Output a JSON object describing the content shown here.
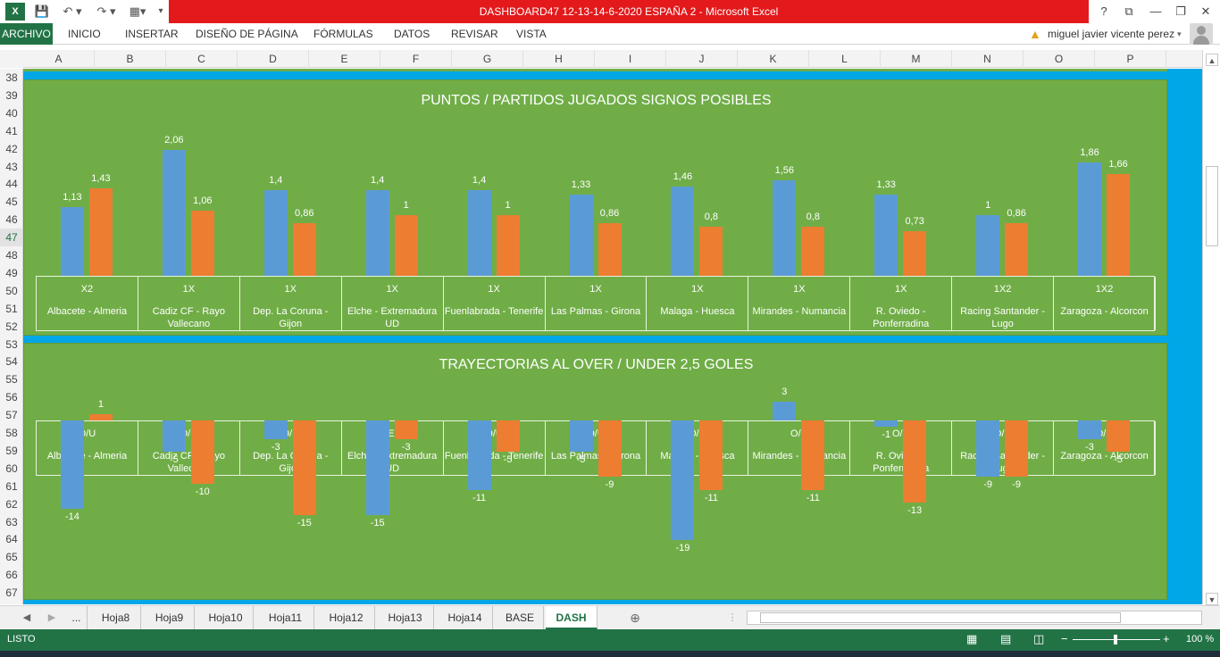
{
  "window": {
    "title": "DASHBOARD47 12-13-14-6-2020 ESPAÑA 2 -  Microsoft Excel",
    "help": "?",
    "controls": [
      "⧉",
      "—",
      "❐",
      "✕"
    ]
  },
  "ribbon": {
    "tabs": [
      "ARCHIVO",
      "INICIO",
      "INSERTAR",
      "DISEÑO DE PÁGINA",
      "FÓRMULAS",
      "DATOS",
      "REVISAR",
      "VISTA"
    ],
    "user": "miguel javier vicente perez"
  },
  "columns": [
    "A",
    "B",
    "C",
    "D",
    "E",
    "F",
    "G",
    "H",
    "I",
    "J",
    "K",
    "L",
    "M",
    "N",
    "O",
    "P"
  ],
  "rows": [
    "38",
    "39",
    "40",
    "41",
    "42",
    "43",
    "44",
    "45",
    "46",
    "47",
    "48",
    "49",
    "50",
    "51",
    "52",
    "53",
    "54",
    "55",
    "56",
    "57",
    "58",
    "59",
    "60",
    "61",
    "62",
    "63",
    "64",
    "65",
    "66",
    "67"
  ],
  "selected_row": "47",
  "matches": [
    {
      "sign": "X2",
      "name": "Albacete - Almeria"
    },
    {
      "sign": "1X",
      "name": "Cadiz CF - Rayo Vallecano"
    },
    {
      "sign": "1X",
      "name": "Dep. La Coruna - Gijon"
    },
    {
      "sign": "1X",
      "name": "Elche - Extremadura UD"
    },
    {
      "sign": "1X",
      "name": "Fuenlabrada - Tenerife"
    },
    {
      "sign": "1X",
      "name": "Las Palmas - Girona"
    },
    {
      "sign": "1X",
      "name": "Malaga - Huesca"
    },
    {
      "sign": "1X",
      "name": "Mirandes - Numancia"
    },
    {
      "sign": "1X",
      "name": "R. Oviedo - Ponferradina"
    },
    {
      "sign": "1X2",
      "name": "Racing Santander - Lugo"
    },
    {
      "sign": "1X2",
      "name": "Zaragoza - Alcorcon"
    }
  ],
  "ou_signs": [
    "O/U",
    "O/U",
    "O/U",
    "UNDER 2,5",
    "O/U",
    "O/U",
    "O/U",
    "O/U",
    "O/U",
    "O/U",
    "O/U"
  ],
  "chart_data": [
    {
      "type": "bar",
      "title": "PUNTOS / PARTIDOS JUGADOS SIGNOS POSIBLES",
      "categories": [
        "Albacete - Almeria",
        "Cadiz CF - Rayo Vallecano",
        "Dep. La Coruna - Gijon",
        "Elche - Extremadura UD",
        "Fuenlabrada - Tenerife",
        "Las Palmas - Girona",
        "Malaga - Huesca",
        "Mirandes - Numancia",
        "R. Oviedo - Ponferradina",
        "Racing Santander - Lugo",
        "Zaragoza - Alcorcon"
      ],
      "series": [
        {
          "color": "#5b9bd5",
          "values": [
            1.13,
            2.06,
            1.4,
            1.4,
            1.4,
            1.33,
            1.46,
            1.56,
            1.33,
            1,
            1.86
          ],
          "labels": [
            "1,13",
            "2,06",
            "1,4",
            "1,4",
            "1,4",
            "1,33",
            "1,46",
            "1,56",
            "1,33",
            "1",
            "1,86"
          ]
        },
        {
          "color": "#ed7d31",
          "values": [
            1.43,
            1.06,
            0.86,
            1,
            1,
            0.86,
            0.8,
            0.8,
            0.73,
            0.86,
            1.66
          ],
          "labels": [
            "1,43",
            "1,06",
            "0,86",
            "1",
            "1",
            "0,86",
            "0,8",
            "0,8",
            "0,73",
            "0,86",
            "1,66"
          ]
        }
      ],
      "ylim": [
        0,
        2.1
      ],
      "grid": false,
      "legend": "none"
    },
    {
      "type": "bar",
      "title": "TRAYECTORIAS AL OVER / UNDER 2,5 GOLES",
      "categories": [
        "Albacete - Almeria",
        "Cadiz CF - Rayo Vallecano",
        "Dep. La Coruna - Gijon",
        "Elche - Extremadura UD",
        "Fuenlabrada - Tenerife",
        "Las Palmas - Girona",
        "Malaga - Huesca",
        "Mirandes - Numancia",
        "R. Oviedo - Ponferradina",
        "Racing Santander - Lugo",
        "Zaragoza - Alcorcon"
      ],
      "series": [
        {
          "color": "#5b9bd5",
          "values": [
            -14,
            -5,
            -3,
            -15,
            -11,
            -5,
            -19,
            3,
            -1,
            -9,
            -3
          ],
          "labels": [
            "-14",
            "-5",
            "-3",
            "-15",
            "-11",
            "-5",
            "-19",
            "3",
            "-1",
            "-9",
            "-3"
          ]
        },
        {
          "color": "#ed7d31",
          "values": [
            1,
            -10,
            -15,
            -3,
            -5,
            -9,
            -11,
            -11,
            -13,
            -9,
            -5
          ],
          "labels": [
            "1",
            "-10",
            "-15",
            "-3",
            "-5",
            "-9",
            "-11",
            "-11",
            "-13",
            "-9",
            "-5"
          ]
        }
      ],
      "ylim": [
        -20,
        4
      ],
      "grid": false,
      "legend": "none"
    }
  ],
  "sheet_tabs": [
    "...",
    "Hoja8",
    "Hoja9",
    "Hoja10",
    "Hoja11",
    "Hoja12",
    "Hoja13",
    "Hoja14",
    "BASE",
    "DASH"
  ],
  "active_tab": "DASH",
  "status": {
    "ready": "LISTO",
    "zoom": "100 %"
  }
}
